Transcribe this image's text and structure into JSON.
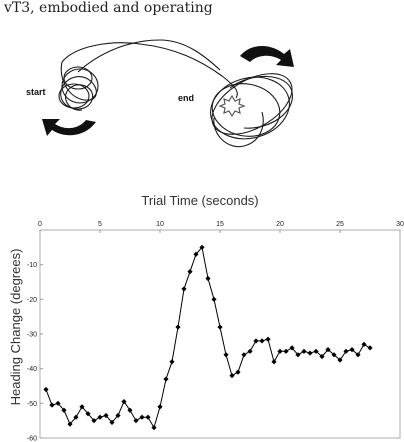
{
  "figure": {
    "title": "vT3, embodied and operating",
    "start_label": "start",
    "end_label": "end"
  },
  "chart_data": {
    "type": "line",
    "title": "",
    "xlabel": "Trial Time (seconds)",
    "ylabel": "Heading Change (degrees)",
    "xlim": [
      0,
      30
    ],
    "ylim": [
      -60,
      0
    ],
    "xticks": [
      0,
      5,
      10,
      15,
      20,
      25,
      30
    ],
    "yticks": [
      -10,
      -20,
      -30,
      -40,
      -50,
      -60
    ],
    "x_axis_position": "top",
    "grid": false,
    "marker": "diamond",
    "color": "#000000",
    "series": [
      {
        "x": [
          0.5,
          1.0,
          1.5,
          2.0,
          2.5,
          3.0,
          3.5,
          4.0,
          4.5,
          5.0,
          5.5,
          6.0,
          6.5,
          7.0,
          7.5,
          8.0,
          8.5,
          9.0,
          9.5,
          10.0,
          10.5,
          11.0,
          11.5,
          12.0,
          12.5,
          13.0,
          13.5,
          14.0,
          14.5,
          15.0,
          15.5,
          16.0,
          16.5,
          17.0,
          17.5,
          18.0,
          18.5,
          19.0,
          19.5,
          20.0,
          20.5,
          21.0,
          21.5,
          22.0,
          22.5,
          23.0,
          23.5,
          24.0,
          24.5,
          25.0,
          25.5,
          26.0,
          26.5,
          27.0,
          27.5
        ],
        "values": [
          -46,
          -50.5,
          -50,
          -52,
          -56,
          -54,
          -51,
          -53,
          -55,
          -54,
          -53.5,
          -55.5,
          -53.5,
          -49.5,
          -52,
          -55,
          -54,
          -54,
          -57,
          -51,
          -43,
          -38,
          -28,
          -17,
          -12,
          -7,
          -5,
          -14,
          -20,
          -28,
          -36,
          -42,
          -41,
          -36,
          -35,
          -32,
          -32,
          -31.5,
          -38,
          -35,
          -35,
          -34,
          -36,
          -35,
          -35.5,
          -35,
          -36.5,
          -34.5,
          -36,
          -37.5,
          -35,
          -34.5,
          -36,
          -33,
          -34
        ]
      }
    ]
  }
}
